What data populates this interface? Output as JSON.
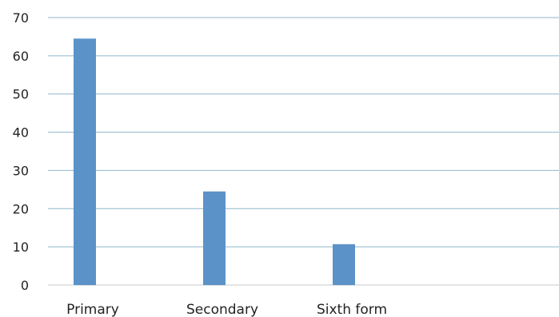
{
  "chart_data": {
    "type": "bar",
    "title": "",
    "xlabel": "",
    "ylabel": "",
    "categories": [
      "Primary",
      "Secondary",
      "Sixth form"
    ],
    "values": [
      64.5,
      24.5,
      10.7
    ],
    "ylim": [
      0,
      70
    ],
    "yticks": [
      "0",
      "10",
      "20",
      "30",
      "40",
      "50",
      "60",
      "70"
    ],
    "grid": true,
    "legend": "none",
    "colors": {
      "bar": "#5b93c8",
      "gridline": "#8fb6cc",
      "baseline": "#c8c8c8"
    }
  }
}
